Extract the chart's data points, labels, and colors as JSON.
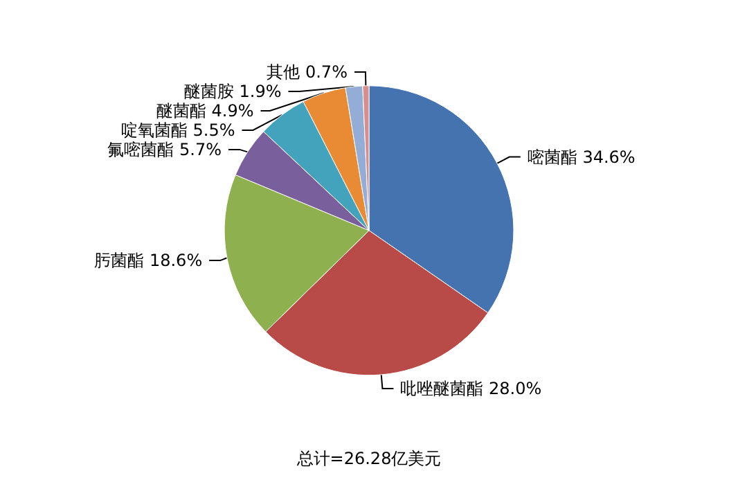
{
  "chart_data": {
    "type": "pie",
    "categories": [
      "嘧菌酯",
      "吡唑醚菌酯",
      "肟菌酯",
      "氟嘧菌酯",
      "啶氧菌酯",
      "醚菌酯",
      "醚菌胺",
      "其他"
    ],
    "values": [
      34.6,
      28.0,
      18.6,
      5.7,
      5.5,
      4.9,
      1.9,
      0.7
    ],
    "value_labels": [
      "34.6%",
      "28.0%",
      "18.6%",
      "5.7%",
      "5.5%",
      "4.9%",
      "1.9%",
      "0.7%"
    ],
    "colors": [
      "#4573b0",
      "#b84a47",
      "#8fb04f",
      "#7a5f9d",
      "#43a2bc",
      "#e98a35",
      "#93add6",
      "#d68f8c"
    ],
    "annotations": [
      "总计=26.28亿美元"
    ]
  }
}
